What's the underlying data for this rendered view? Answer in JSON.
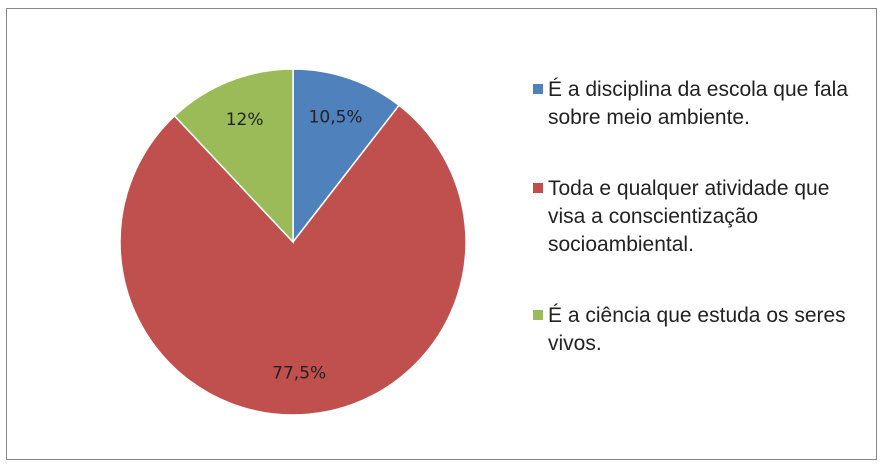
{
  "chart_data": {
    "type": "pie",
    "categories": [
      "É a disciplina da escola que fala sobre meio ambiente.",
      "Toda e qualquer atividade que visa a conscientização socioambiental.",
      "É a ciência que estuda os seres vivos."
    ],
    "values": [
      10.5,
      77.5,
      12
    ],
    "value_labels": [
      "10,5%",
      "77,5%",
      "12%"
    ],
    "colors": [
      "#4f81bd",
      "#c0504d",
      "#9bbb59"
    ],
    "legend": "right"
  }
}
